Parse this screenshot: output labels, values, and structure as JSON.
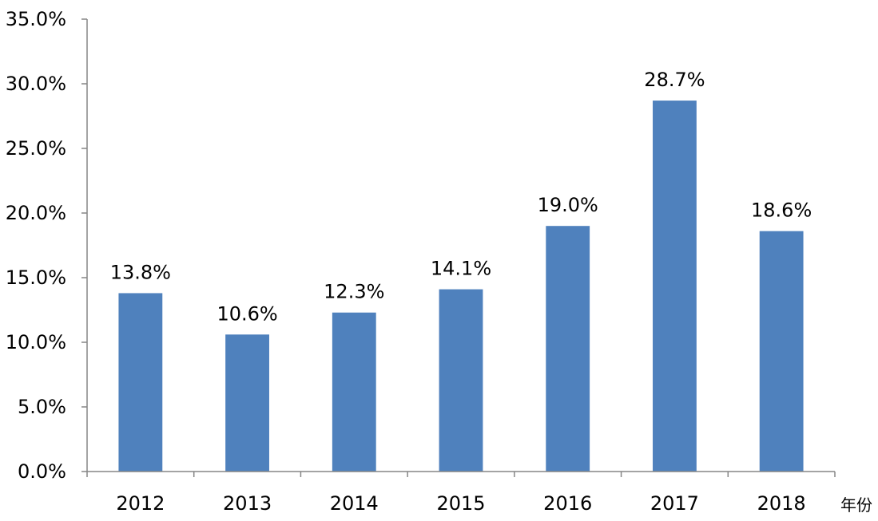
{
  "chart_data": {
    "type": "bar",
    "categories": [
      "2012",
      "2013",
      "2014",
      "2015",
      "2016",
      "2017",
      "2018"
    ],
    "values": [
      13.8,
      10.6,
      12.3,
      14.1,
      19.0,
      28.7,
      18.6
    ],
    "data_labels": [
      "13.8%",
      "10.6%",
      "12.3%",
      "14.1%",
      "19.0%",
      "28.7%",
      "18.6%"
    ],
    "title": "",
    "xlabel": "年份",
    "ylabel": "",
    "ylim": [
      0,
      35
    ],
    "yticks": [
      0,
      5,
      10,
      15,
      20,
      25,
      30,
      35
    ],
    "ytick_labels": [
      "0.0%",
      "5.0%",
      "10.0%",
      "15.0%",
      "20.0%",
      "25.0%",
      "30.0%",
      "35.0%"
    ],
    "grid": false,
    "legend": "none",
    "colors": {
      "bar": "#4F81BD",
      "axis": "#868686"
    }
  }
}
